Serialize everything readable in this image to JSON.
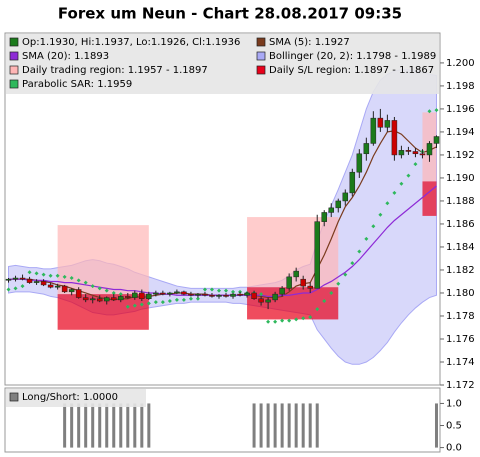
{
  "chart_data": [
    {
      "type": "candlestick",
      "title": "Forex um Neun - Chart 28.08.2017 09:35",
      "ylim": [
        1.172,
        1.2026
      ],
      "yticks": [
        {
          "value": 1.172,
          "label": "1.172"
        },
        {
          "value": 1.174,
          "label": "1.174"
        },
        {
          "value": 1.176,
          "label": "1.176"
        },
        {
          "value": 1.178,
          "label": "1.178"
        },
        {
          "value": 1.18,
          "label": "1.180"
        },
        {
          "value": 1.182,
          "label": "1.182"
        },
        {
          "value": 1.184,
          "label": "1.184"
        },
        {
          "value": 1.186,
          "label": "1.186"
        },
        {
          "value": 1.188,
          "label": "1.188"
        },
        {
          "value": 1.19,
          "label": "1.190"
        },
        {
          "value": 1.192,
          "label": "1.192"
        },
        {
          "value": 1.194,
          "label": "1.194"
        },
        {
          "value": 1.196,
          "label": "1.196"
        },
        {
          "value": 1.198,
          "label": "1.198"
        },
        {
          "value": 1.2,
          "label": "1.200"
        }
      ],
      "series": [
        {
          "name": "Op:1.1930, Hi:1.1937, Lo:1.1926, Cl:1.1936",
          "type": "candlestick",
          "color": "#1b7a1b",
          "down_color": "#cc0000",
          "open": [
            1.1811,
            1.1812,
            1.1813,
            1.1812,
            1.1809,
            1.181,
            1.1807,
            1.1805,
            1.1806,
            1.1801,
            1.1803,
            1.1796,
            1.1794,
            1.1795,
            1.1793,
            1.1796,
            1.1794,
            1.1797,
            1.1796,
            1.18,
            1.1795,
            1.1799,
            1.18,
            1.1799,
            1.18,
            1.1801,
            1.1799,
            1.1798,
            1.1799,
            1.1798,
            1.1797,
            1.1798,
            1.1797,
            1.1799,
            1.1798,
            1.18,
            1.1795,
            1.1792,
            1.1794,
            1.1799,
            1.1804,
            1.1814,
            1.1812,
            1.1806,
            1.1804,
            1.1862,
            1.187,
            1.1874,
            1.188,
            1.1887,
            1.1905,
            1.1921,
            1.193,
            1.1952,
            1.1944,
            1.195,
            1.192,
            1.1924,
            1.1923,
            1.1921,
            1.192,
            1.193
          ],
          "high": [
            1.1813,
            1.1815,
            1.1816,
            1.1814,
            1.1812,
            1.1812,
            1.1809,
            1.1808,
            1.1807,
            1.1804,
            1.1805,
            1.1799,
            1.1797,
            1.1798,
            1.1797,
            1.1799,
            1.1798,
            1.18,
            1.1802,
            1.1803,
            1.1801,
            1.1802,
            1.1802,
            1.1801,
            1.1803,
            1.1802,
            1.1801,
            1.18,
            1.1801,
            1.18,
            1.1799,
            1.18,
            1.18,
            1.1801,
            1.1801,
            1.1802,
            1.1797,
            1.1796,
            1.1801,
            1.1806,
            1.1817,
            1.1822,
            1.1815,
            1.1809,
            1.1868,
            1.1872,
            1.1878,
            1.1882,
            1.189,
            1.1908,
            1.1925,
            1.1935,
            1.1958,
            1.196,
            1.1955,
            1.1953,
            1.1928,
            1.1927,
            1.1926,
            1.1925,
            1.1932,
            1.1937
          ],
          "low": [
            1.1809,
            1.181,
            1.1811,
            1.1808,
            1.1807,
            1.1806,
            1.1804,
            1.1803,
            1.18,
            1.1798,
            1.1795,
            1.1792,
            1.1791,
            1.1792,
            1.179,
            1.1793,
            1.1792,
            1.1795,
            1.1794,
            1.1793,
            1.1794,
            1.1797,
            1.1798,
            1.1797,
            1.1799,
            1.1798,
            1.1797,
            1.1796,
            1.1797,
            1.1796,
            1.1795,
            1.1796,
            1.1795,
            1.1797,
            1.1796,
            1.1794,
            1.1789,
            1.1786,
            1.1792,
            1.1797,
            1.1802,
            1.181,
            1.1803,
            1.18,
            1.1804,
            1.1858,
            1.1866,
            1.187,
            1.1876,
            1.1884,
            1.19,
            1.1915,
            1.1928,
            1.194,
            1.194,
            1.1915,
            1.1917,
            1.192,
            1.1918,
            1.1917,
            1.1914,
            1.1926
          ],
          "close": [
            1.1812,
            1.1813,
            1.1812,
            1.1809,
            1.181,
            1.1807,
            1.1805,
            1.1806,
            1.1801,
            1.1803,
            1.1796,
            1.1794,
            1.1795,
            1.1793,
            1.1796,
            1.1794,
            1.1797,
            1.1796,
            1.18,
            1.1795,
            1.1799,
            1.18,
            1.1799,
            1.18,
            1.1801,
            1.1799,
            1.1798,
            1.1799,
            1.1798,
            1.1797,
            1.1798,
            1.1797,
            1.1799,
            1.1798,
            1.18,
            1.1795,
            1.1792,
            1.1794,
            1.1799,
            1.1804,
            1.1814,
            1.1819,
            1.1806,
            1.1804,
            1.1862,
            1.187,
            1.1874,
            1.188,
            1.1887,
            1.1905,
            1.1921,
            1.193,
            1.1952,
            1.1944,
            1.195,
            1.192,
            1.1924,
            1.1923,
            1.1921,
            1.192,
            1.193,
            1.1936
          ]
        },
        {
          "name": "SMA (5): 1.1927",
          "type": "line",
          "color": "#7a3b1e",
          "values": [
            1.1812,
            1.1812,
            1.1812,
            1.1812,
            1.1811,
            1.181,
            1.1809,
            1.1807,
            1.1806,
            1.1804,
            1.1802,
            1.18,
            1.1798,
            1.1796,
            1.1795,
            1.1794,
            1.1795,
            1.1795,
            1.1797,
            1.1796,
            1.1797,
            1.1798,
            1.1799,
            1.1799,
            1.18,
            1.18,
            1.1799,
            1.1799,
            1.1799,
            1.1798,
            1.1798,
            1.1798,
            1.1798,
            1.1798,
            1.1799,
            1.1798,
            1.1797,
            1.1796,
            1.1796,
            1.1797,
            1.1801,
            1.1806,
            1.1808,
            1.1809,
            1.1821,
            1.1833,
            1.1847,
            1.1862,
            1.1875,
            1.1883,
            1.1893,
            1.1905,
            1.1919,
            1.193,
            1.194,
            1.1941,
            1.1938,
            1.1932,
            1.1926,
            1.1922,
            1.1924,
            1.1927
          ]
        },
        {
          "name": "SMA (20): 1.1893",
          "type": "line",
          "color": "#8e2bd6",
          "values": [
            1.1812,
            1.1812,
            1.1812,
            1.1811,
            1.1811,
            1.1811,
            1.181,
            1.181,
            1.1809,
            1.1809,
            1.1808,
            1.1807,
            1.1806,
            1.1805,
            1.1804,
            1.1803,
            1.1803,
            1.1802,
            1.1802,
            1.1801,
            1.18,
            1.18,
            1.1799,
            1.1799,
            1.1798,
            1.1798,
            1.1798,
            1.1798,
            1.1798,
            1.1798,
            1.1798,
            1.1798,
            1.1798,
            1.1798,
            1.1798,
            1.1798,
            1.1798,
            1.1797,
            1.1797,
            1.1798,
            1.1798,
            1.1799,
            1.18,
            1.18,
            1.1803,
            1.1807,
            1.181,
            1.1814,
            1.1818,
            1.1823,
            1.1829,
            1.1836,
            1.1843,
            1.185,
            1.1857,
            1.1863,
            1.1868,
            1.1873,
            1.1878,
            1.1883,
            1.1888,
            1.1893
          ]
        },
        {
          "name": "Bollinger (20, 2): 1.1798 - 1.1989",
          "type": "band",
          "color": "#a9a9f5",
          "upper": [
            1.1823,
            1.1824,
            1.1823,
            1.1822,
            1.1822,
            1.1821,
            1.1821,
            1.1822,
            1.1823,
            1.1824,
            1.1826,
            1.1828,
            1.1829,
            1.1828,
            1.1826,
            1.1825,
            1.1823,
            1.1821,
            1.1818,
            1.1816,
            1.1814,
            1.1812,
            1.181,
            1.1808,
            1.1806,
            1.1805,
            1.1804,
            1.1804,
            1.1804,
            1.1804,
            1.1804,
            1.1804,
            1.1804,
            1.1805,
            1.1805,
            1.1806,
            1.1807,
            1.1808,
            1.1809,
            1.1811,
            1.1815,
            1.182,
            1.1823,
            1.1825,
            1.1845,
            1.1862,
            1.1876,
            1.189,
            1.1905,
            1.192,
            1.194,
            1.196,
            1.1975,
            1.1985,
            1.199,
            1.1993,
            1.1994,
            1.1994,
            1.1993,
            1.1992,
            1.199,
            1.1989
          ],
          "lower": [
            1.18,
            1.1801,
            1.1801,
            1.1801,
            1.18,
            1.1799,
            1.1797,
            1.1796,
            1.1794,
            1.1792,
            1.1789,
            1.1786,
            1.1783,
            1.1782,
            1.1781,
            1.1781,
            1.1782,
            1.1783,
            1.1784,
            1.1786,
            1.1787,
            1.1788,
            1.1789,
            1.179,
            1.1791,
            1.1791,
            1.1792,
            1.1792,
            1.1792,
            1.1792,
            1.1792,
            1.1792,
            1.1791,
            1.1791,
            1.179,
            1.1789,
            1.1788,
            1.1787,
            1.1786,
            1.1785,
            1.1784,
            1.1783,
            1.1782,
            1.1781,
            1.1768,
            1.176,
            1.1752,
            1.1745,
            1.174,
            1.1738,
            1.1738,
            1.174,
            1.1744,
            1.175,
            1.1757,
            1.1766,
            1.1774,
            1.1781,
            1.1787,
            1.1792,
            1.1796,
            1.1798
          ]
        },
        {
          "name": "Daily trading region: 1.1957 - 1.1897",
          "type": "region",
          "color": "#ffb6b6",
          "regions": [
            {
              "from": 7,
              "to": 20,
              "high": 1.1859,
              "low": 1.1799
            },
            {
              "from": 34,
              "to": 47,
              "high": 1.1866,
              "low": 1.1805
            },
            {
              "from": 59,
              "to": 61,
              "high": 1.1957,
              "low": 1.1897
            }
          ]
        },
        {
          "name": "Daily S/L region: 1.1897 - 1.1867",
          "type": "region",
          "color": "#e8001a",
          "regions": [
            {
              "from": 7,
              "to": 20,
              "high": 1.1799,
              "low": 1.1768
            },
            {
              "from": 34,
              "to": 47,
              "high": 1.1805,
              "low": 1.1777
            },
            {
              "from": 59,
              "to": 61,
              "high": 1.1897,
              "low": 1.1867
            }
          ]
        },
        {
          "name": "Parabolic SAR: 1.1959",
          "type": "dots",
          "color": "#2eb85c",
          "values": [
            1.1803,
            1.1804,
            1.1806,
            1.1818,
            1.1817,
            1.1816,
            1.1815,
            1.1815,
            1.1814,
            1.1813,
            1.1811,
            1.1809,
            1.1806,
            1.1804,
            1.1802,
            1.18,
            1.1799,
            1.1788,
            1.1789,
            1.179,
            1.1791,
            1.1792,
            1.1792,
            1.1793,
            1.1794,
            1.1794,
            1.1795,
            1.1795,
            1.1803,
            1.1803,
            1.1802,
            1.1802,
            1.1801,
            1.1801,
            1.18,
            1.18,
            1.1799,
            1.1775,
            1.1775,
            1.1776,
            1.1776,
            1.1777,
            1.1778,
            1.1779,
            1.1786,
            1.1793,
            1.18,
            1.1808,
            1.1816,
            1.1826,
            1.1836,
            1.1847,
            1.1858,
            1.1868,
            1.1878,
            1.1887,
            1.1895,
            1.1902,
            1.1912,
            1.1923,
            1.1958,
            1.1959
          ]
        }
      ]
    },
    {
      "type": "bar",
      "ylim": [
        -0.1,
        1.35
      ],
      "yticks": [
        {
          "value": 0,
          "label": "0.0"
        },
        {
          "value": 0.5,
          "label": "0.5"
        },
        {
          "value": 1,
          "label": "1.0"
        }
      ],
      "series": [
        {
          "name": "Long/Short: 1.0000",
          "color": "#7f7f7f",
          "values": [
            0,
            0,
            0,
            0,
            0,
            0,
            0,
            0,
            1,
            1,
            1,
            1,
            1,
            1,
            1,
            1,
            1,
            1,
            1,
            1,
            1,
            0,
            0,
            0,
            0,
            0,
            0,
            0,
            0,
            0,
            0,
            0,
            0,
            0,
            0,
            1,
            1,
            1,
            1,
            1,
            1,
            1,
            1,
            1,
            1,
            0,
            0,
            0,
            0,
            0,
            0,
            0,
            0,
            0,
            0,
            0,
            0,
            0,
            0,
            0,
            0,
            1
          ]
        }
      ]
    }
  ]
}
